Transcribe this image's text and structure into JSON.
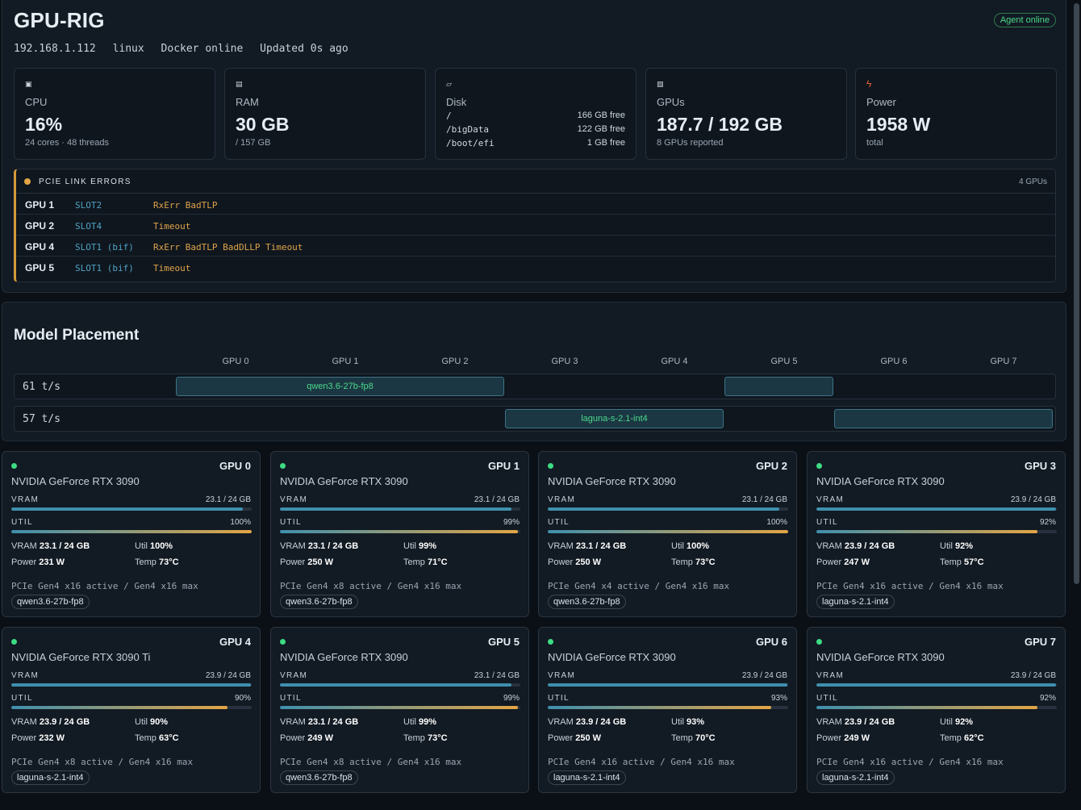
{
  "header": {
    "title": "GPU-RIG",
    "agent_status": "Agent online",
    "meta": [
      "192.168.1.112",
      "linux",
      "Docker online",
      "Updated 0s ago"
    ]
  },
  "stats": {
    "cpu": {
      "icon": "cpu-icon",
      "label": "CPU",
      "value": "16%",
      "sub": "24 cores · 48 threads"
    },
    "ram": {
      "icon": "memory-icon",
      "label": "RAM",
      "value": "30 GB",
      "sub": "/ 157 GB"
    },
    "disk": {
      "icon": "disk-icon",
      "label": "Disk",
      "mounts": [
        {
          "path": "/",
          "free": "166 GB free"
        },
        {
          "path": "/bigData",
          "free": "122 GB free"
        },
        {
          "path": "/boot/efi",
          "free": "1 GB free"
        }
      ]
    },
    "gpus": {
      "icon": "gpu-icon",
      "label": "GPUs",
      "value": "187.7 / 192 GB",
      "sub": "8 GPUs reported"
    },
    "power": {
      "icon": "lightning-icon",
      "label": "Power",
      "value": "1958 W",
      "sub": "total"
    }
  },
  "pcie_errors": {
    "title": "PCIE LINK ERRORS",
    "count": "4 GPUs",
    "status_color": "#e3a545",
    "rows": [
      {
        "gpu": "GPU 1",
        "slot": "SLOT2",
        "errors": "RxErr BadTLP"
      },
      {
        "gpu": "GPU 2",
        "slot": "SLOT4",
        "errors": "Timeout"
      },
      {
        "gpu": "GPU 4",
        "slot": "SLOT1 (bif)",
        "errors": "RxErr BadTLP BadDLLP Timeout"
      },
      {
        "gpu": "GPU 5",
        "slot": "SLOT1 (bif)",
        "errors": "Timeout"
      }
    ]
  },
  "placement": {
    "title": "Model Placement",
    "columns": [
      "GPU 0",
      "GPU 1",
      "GPU 2",
      "GPU 3",
      "GPU 4",
      "GPU 5",
      "GPU 6",
      "GPU 7"
    ],
    "rows": [
      {
        "rate": "61 t/s",
        "segments": [
          {
            "label": "qwen3.6-27b-fp8",
            "gpus": [
              0,
              1,
              2
            ]
          },
          {
            "label": "",
            "gpus": [
              5
            ]
          }
        ]
      },
      {
        "rate": "57 t/s",
        "segments": [
          {
            "label": "laguna-s-2.1-int4",
            "gpus": [
              3,
              4
            ]
          },
          {
            "label": "",
            "gpus": [
              6,
              7
            ]
          }
        ]
      }
    ]
  },
  "gpu_cards": [
    {
      "id": "GPU 0",
      "name": "NVIDIA GeForce RTX 3090",
      "vram_label": "VRAM",
      "vram_text": "23.1 / 24 GB",
      "vram_frac": 0.962,
      "util_label": "UTIL",
      "util_text": "100%",
      "util_frac": 1.0,
      "vram_kv": "23.1 / 24 GB",
      "util_kv": "100%",
      "power": "231 W",
      "temp": "73°C",
      "pcie": "PCIe Gen4 x16 active / Gen4 x16 max",
      "model": "qwen3.6-27b-fp8"
    },
    {
      "id": "GPU 1",
      "name": "NVIDIA GeForce RTX 3090",
      "vram_label": "VRAM",
      "vram_text": "23.1 / 24 GB",
      "vram_frac": 0.962,
      "util_label": "UTIL",
      "util_text": "99%",
      "util_frac": 0.99,
      "vram_kv": "23.1 / 24 GB",
      "util_kv": "99%",
      "power": "250 W",
      "temp": "71°C",
      "pcie": "PCIe Gen4 x8 active / Gen4 x16 max",
      "model": "qwen3.6-27b-fp8"
    },
    {
      "id": "GPU 2",
      "name": "NVIDIA GeForce RTX 3090",
      "vram_label": "VRAM",
      "vram_text": "23.1 / 24 GB",
      "vram_frac": 0.962,
      "util_label": "UTIL",
      "util_text": "100%",
      "util_frac": 1.0,
      "vram_kv": "23.1 / 24 GB",
      "util_kv": "100%",
      "power": "250 W",
      "temp": "73°C",
      "pcie": "PCIe Gen4 x4 active / Gen4 x16 max",
      "model": "qwen3.6-27b-fp8"
    },
    {
      "id": "GPU 3",
      "name": "NVIDIA GeForce RTX 3090",
      "vram_label": "VRAM",
      "vram_text": "23.9 / 24 GB",
      "vram_frac": 0.996,
      "util_label": "UTIL",
      "util_text": "92%",
      "util_frac": 0.92,
      "vram_kv": "23.9 / 24 GB",
      "util_kv": "92%",
      "power": "247 W",
      "temp": "57°C",
      "pcie": "PCIe Gen4 x16 active / Gen4 x16 max",
      "model": "laguna-s-2.1-int4"
    },
    {
      "id": "GPU 4",
      "name": "NVIDIA GeForce RTX 3090 Ti",
      "vram_label": "VRAM",
      "vram_text": "23.9 / 24 GB",
      "vram_frac": 0.996,
      "util_label": "UTIL",
      "util_text": "90%",
      "util_frac": 0.9,
      "vram_kv": "23.9 / 24 GB",
      "util_kv": "90%",
      "power": "232 W",
      "temp": "63°C",
      "pcie": "PCIe Gen4 x8 active / Gen4 x16 max",
      "model": "laguna-s-2.1-int4"
    },
    {
      "id": "GPU 5",
      "name": "NVIDIA GeForce RTX 3090",
      "vram_label": "VRAM",
      "vram_text": "23.1 / 24 GB",
      "vram_frac": 0.962,
      "util_label": "UTIL",
      "util_text": "99%",
      "util_frac": 0.99,
      "vram_kv": "23.1 / 24 GB",
      "util_kv": "99%",
      "power": "249 W",
      "temp": "73°C",
      "pcie": "PCIe Gen4 x8 active / Gen4 x16 max",
      "model": "qwen3.6-27b-fp8"
    },
    {
      "id": "GPU 6",
      "name": "NVIDIA GeForce RTX 3090",
      "vram_label": "VRAM",
      "vram_text": "23.9 / 24 GB",
      "vram_frac": 0.996,
      "util_label": "UTIL",
      "util_text": "93%",
      "util_frac": 0.93,
      "vram_kv": "23.9 / 24 GB",
      "util_kv": "93%",
      "power": "250 W",
      "temp": "70°C",
      "pcie": "PCIe Gen4 x16 active / Gen4 x16 max",
      "model": "laguna-s-2.1-int4"
    },
    {
      "id": "GPU 7",
      "name": "NVIDIA GeForce RTX 3090",
      "vram_label": "VRAM",
      "vram_text": "23.9 / 24 GB",
      "vram_frac": 0.996,
      "util_label": "UTIL",
      "util_text": "92%",
      "util_frac": 0.92,
      "vram_kv": "23.9 / 24 GB",
      "util_kv": "92%",
      "power": "249 W",
      "temp": "62°C",
      "pcie": "PCIe Gen4 x16 active / Gen4 x16 max",
      "model": "laguna-s-2.1-int4"
    }
  ],
  "card_labels": {
    "vram": "VRAM",
    "util": "Util",
    "power": "Power",
    "temp": "Temp"
  },
  "colors": {
    "accent": "#3f8fad",
    "online": "#3ddc84",
    "warning": "#e3a545",
    "background": "#0b1016"
  }
}
